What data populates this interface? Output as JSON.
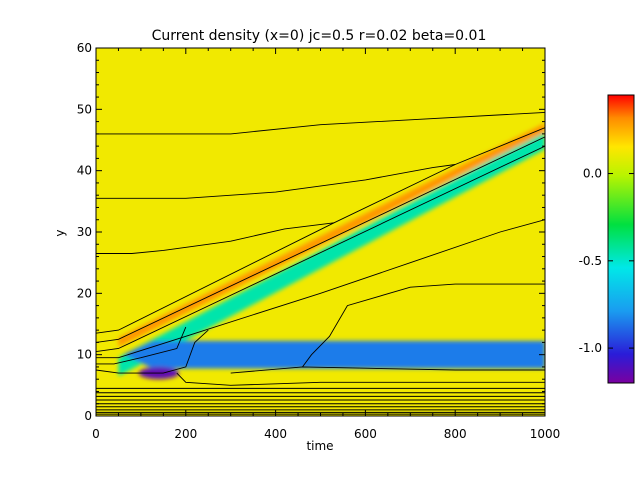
{
  "chart_data": {
    "type": "heatmap",
    "title": "Current density (x=0) jc=0.5 r=0.02 beta=0.01",
    "xlabel": "time",
    "ylabel": "y",
    "xlim": [
      0,
      1000
    ],
    "ylim": [
      0,
      60
    ],
    "xticks": [
      0,
      200,
      400,
      600,
      800,
      1000
    ],
    "yticks": [
      0,
      10,
      20,
      30,
      40,
      50,
      60
    ],
    "colorbar": {
      "range": [
        -1.2,
        0.45
      ],
      "ticks": [
        0.0,
        -0.5,
        -1.0
      ],
      "tick_labels": [
        "0.0",
        "-0.5",
        "-1.0"
      ],
      "colormap": "rainbow"
    },
    "background_value": 0.12,
    "features": [
      {
        "name": "diagonal-beam",
        "value": -0.45,
        "start": [
          50,
          8
        ],
        "end": [
          1000,
          45
        ],
        "width_y": 3.0
      },
      {
        "name": "upper-edge-band",
        "value": 0.3,
        "start": [
          50,
          12
        ],
        "end": [
          1000,
          47
        ],
        "width_y": 1.5
      },
      {
        "name": "cyan-wake",
        "value": -0.85,
        "x_range": [
          60,
          1000
        ],
        "y_center": 10,
        "width_y": 4.5
      },
      {
        "name": "dark-core",
        "value": -1.15,
        "center": [
          140,
          7
        ],
        "extent": [
          90,
          2
        ]
      }
    ],
    "contours": [
      {
        "name": "contour-1",
        "points": [
          [
            0,
            46
          ],
          [
            50,
            46
          ],
          [
            300,
            46
          ],
          [
            500,
            47.5
          ],
          [
            700,
            48.3
          ],
          [
            1000,
            49.5
          ]
        ]
      },
      {
        "name": "contour-2",
        "points": [
          [
            0,
            35.5
          ],
          [
            60,
            35.5
          ],
          [
            200,
            35.5
          ],
          [
            400,
            36.5
          ],
          [
            600,
            38.5
          ],
          [
            750,
            40.5
          ],
          [
            800,
            41
          ]
        ]
      },
      {
        "name": "contour-3",
        "points": [
          [
            0,
            26.5
          ],
          [
            80,
            26.5
          ],
          [
            150,
            27
          ],
          [
            300,
            28.5
          ],
          [
            420,
            30.5
          ],
          [
            530,
            31.5
          ]
        ]
      },
      {
        "name": "contour-4",
        "points": [
          [
            0,
            13.5
          ],
          [
            50,
            14
          ],
          [
            530,
            31.5
          ],
          [
            800,
            41
          ],
          [
            1000,
            47
          ]
        ]
      },
      {
        "name": "contour-5",
        "points": [
          [
            0,
            12
          ],
          [
            50,
            12.5
          ],
          [
            1000,
            45.5
          ]
        ]
      },
      {
        "name": "contour-6",
        "points": [
          [
            0,
            10.5
          ],
          [
            50,
            11
          ],
          [
            1000,
            44
          ]
        ]
      },
      {
        "name": "contour-7",
        "points": [
          [
            0,
            9.5
          ],
          [
            50,
            9.5
          ],
          [
            200,
            13
          ],
          [
            500,
            20
          ],
          [
            700,
            25
          ],
          [
            900,
            30
          ],
          [
            1000,
            32
          ]
        ]
      },
      {
        "name": "contour-8",
        "points": [
          [
            0,
            8.5
          ],
          [
            40,
            8.5
          ],
          [
            100,
            9.5
          ],
          [
            180,
            11
          ],
          [
            200,
            14.5
          ]
        ]
      },
      {
        "name": "contour-9",
        "points": [
          [
            0,
            7.5
          ],
          [
            50,
            7
          ],
          [
            150,
            7
          ],
          [
            200,
            8
          ],
          [
            220,
            12
          ],
          [
            250,
            14
          ]
        ]
      },
      {
        "name": "contour-10",
        "points": [
          [
            180,
            7
          ],
          [
            200,
            5.5
          ],
          [
            300,
            5
          ],
          [
            500,
            5.5
          ],
          [
            700,
            5.5
          ],
          [
            1000,
            5.5
          ]
        ]
      },
      {
        "name": "contour-11",
        "points": [
          [
            460,
            8
          ],
          [
            480,
            10
          ],
          [
            520,
            13
          ],
          [
            560,
            18
          ],
          [
            700,
            21
          ],
          [
            800,
            21.5
          ],
          [
            1000,
            21.5
          ]
        ]
      },
      {
        "name": "contour-12",
        "points": [
          [
            300,
            7
          ],
          [
            460,
            8
          ],
          [
            600,
            7.8
          ],
          [
            800,
            7.5
          ],
          [
            1000,
            7.5
          ]
        ]
      }
    ],
    "bottom_contours_y": [
      4.5,
      3.8,
      3.2,
      2.6,
      2.0,
      1.5,
      1.0,
      0.6,
      0.3
    ]
  }
}
